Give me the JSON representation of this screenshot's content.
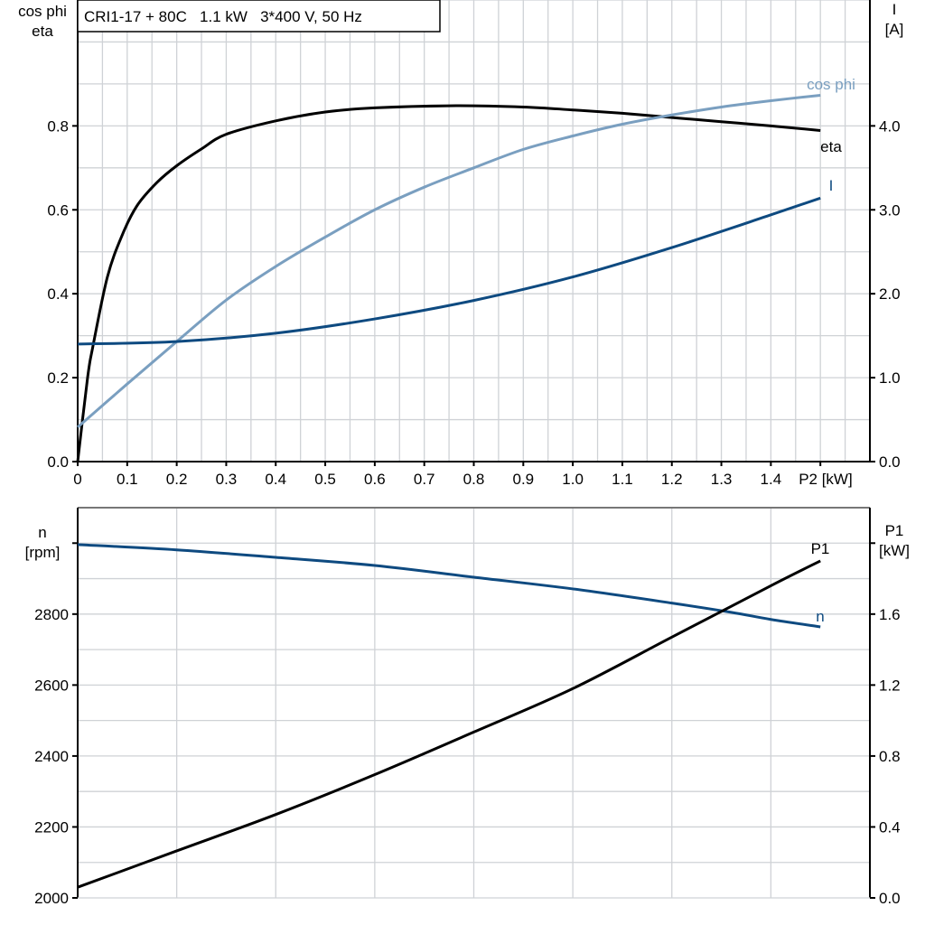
{
  "title": "CRI1-17 + 80C   1.1 kW   3*400 V, 50 Hz",
  "colors": {
    "eta": "#000000",
    "cos_phi": "#7a9fc0",
    "I": "#0e4a80",
    "n": "#0e4a80",
    "P1": "#000000",
    "grid": "#cfd2d6"
  },
  "chart_data": [
    {
      "type": "line",
      "xlabel": "P2 [kW]",
      "xlim": [
        0,
        1.6
      ],
      "x_ticks": [
        "0",
        "0.1",
        "0.2",
        "0.3",
        "0.4",
        "0.5",
        "0.6",
        "0.7",
        "0.8",
        "0.9",
        "1.0",
        "1.1",
        "1.2",
        "1.3",
        "1.4"
      ],
      "ylabel_left": [
        "cos phi",
        "eta"
      ],
      "ylim_left": [
        0,
        1.1
      ],
      "y_ticks_left": [
        "0.0",
        "0.2",
        "0.4",
        "0.6",
        "0.8"
      ],
      "ylabel_right": [
        "I",
        "[A]"
      ],
      "ylim_right": [
        0,
        5.5
      ],
      "y_ticks_right": [
        "0.0",
        "1.0",
        "2.0",
        "3.0",
        "4.0"
      ],
      "grid": true,
      "series": [
        {
          "name": "eta",
          "axis": "left",
          "color": "#000000",
          "x": [
            0,
            0.02,
            0.03,
            0.06,
            0.09,
            0.12,
            0.16,
            0.2,
            0.25,
            0.3,
            0.4,
            0.5,
            0.6,
            0.75,
            0.9,
            1.0,
            1.1,
            1.2,
            1.3,
            1.4,
            1.5
          ],
          "y": [
            0,
            0.2,
            0.27,
            0.44,
            0.54,
            0.61,
            0.665,
            0.705,
            0.745,
            0.78,
            0.812,
            0.833,
            0.843,
            0.848,
            0.845,
            0.838,
            0.83,
            0.82,
            0.81,
            0.8,
            0.789
          ]
        },
        {
          "name": "cos phi",
          "axis": "left",
          "color": "#7a9fc0",
          "x": [
            0,
            0.1,
            0.2,
            0.3,
            0.4,
            0.5,
            0.6,
            0.7,
            0.8,
            0.9,
            1.0,
            1.1,
            1.2,
            1.3,
            1.4,
            1.5
          ],
          "y": [
            0.082,
            0.185,
            0.286,
            0.385,
            0.465,
            0.535,
            0.6,
            0.654,
            0.7,
            0.744,
            0.776,
            0.804,
            0.826,
            0.845,
            0.86,
            0.873
          ]
        },
        {
          "name": "I",
          "axis": "right",
          "color": "#0e4a80",
          "x": [
            0,
            0.2,
            0.4,
            0.6,
            0.8,
            1.0,
            1.2,
            1.4,
            1.5
          ],
          "y": [
            1.4,
            1.43,
            1.53,
            1.7,
            1.92,
            2.2,
            2.55,
            2.94,
            3.14
          ]
        }
      ]
    },
    {
      "type": "line",
      "xlim": [
        0,
        1.6
      ],
      "ylabel_left": [
        "n",
        "[rpm]"
      ],
      "ylim_left": [
        2000,
        3100
      ],
      "y_ticks_left": [
        "2000",
        "2200",
        "2400",
        "2600",
        "2800"
      ],
      "ylabel_right": [
        "P1",
        "[kW]"
      ],
      "ylim_right": [
        0,
        2.2
      ],
      "y_ticks_right": [
        "0.0",
        "0.4",
        "0.8",
        "1.2",
        "1.6"
      ],
      "grid": true,
      "series": [
        {
          "name": "n",
          "axis": "left",
          "color": "#0e4a80",
          "x": [
            0,
            0.2,
            0.4,
            0.6,
            0.8,
            1.0,
            1.2,
            1.32,
            1.4,
            1.5
          ],
          "y": [
            2996,
            2981,
            2960,
            2937,
            2904,
            2871,
            2831,
            2805,
            2785,
            2764
          ]
        },
        {
          "name": "P1",
          "axis": "right",
          "color": "#000000",
          "x": [
            0,
            0.2,
            0.4,
            0.6,
            0.8,
            1.0,
            1.2,
            1.4,
            1.5
          ],
          "y": [
            0.06,
            0.265,
            0.47,
            0.695,
            0.935,
            1.18,
            1.47,
            1.76,
            1.9
          ]
        }
      ]
    }
  ]
}
